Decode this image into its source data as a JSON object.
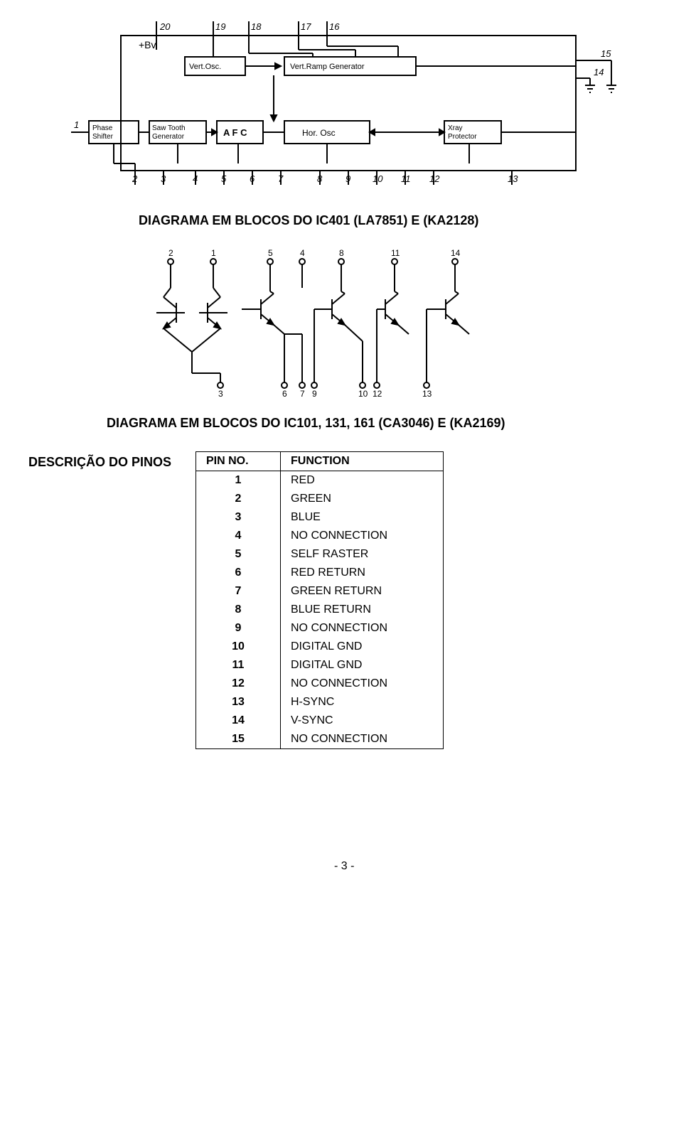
{
  "diagram1": {
    "caption": "DIAGRAMA EM BLOCOS DO IC401 (LA7851) E (KA2128)",
    "top_pins": [
      "20",
      "19",
      "18",
      "17",
      "16"
    ],
    "right_pins": [
      "15",
      "14"
    ],
    "plus_bv": "+Bv",
    "blocks_row1": [
      "Vert.Osc.",
      "Vert.Ramp Generator"
    ],
    "blocks_row2": [
      "Phase Shifter",
      "Saw Tooth Generator",
      "A F C",
      "Hor. Osc",
      "Xray Protector"
    ],
    "bottom_pins": [
      "2",
      "3",
      "4",
      "5",
      "6",
      "7",
      "8",
      "9",
      "10",
      "11",
      "12",
      "13"
    ],
    "left_pin": "1",
    "stroke": "#000000",
    "stroke_width": 2,
    "font_block": 12,
    "font_pin": 13
  },
  "diagram2": {
    "caption": "DIAGRAMA EM BLOCOS DO IC101, 131, 161 (CA3046) E (KA2169)",
    "top_terminals": [
      "2",
      "1",
      "5",
      "4",
      "8",
      "11",
      "14"
    ],
    "bottom_terminals": [
      "3",
      "6",
      "7",
      "9",
      "10",
      "12",
      "13"
    ],
    "stroke": "#000000",
    "stroke_width": 2,
    "font_pin": 12
  },
  "section_label": "DESCRIÇÃO DO PINOS",
  "pin_table": {
    "headers": [
      "PIN  NO.",
      "FUNCTION"
    ],
    "rows": [
      [
        "1",
        "RED"
      ],
      [
        "2",
        "GREEN"
      ],
      [
        "3",
        "BLUE"
      ],
      [
        "4",
        "NO CONNECTION"
      ],
      [
        "5",
        "SELF RASTER"
      ],
      [
        "6",
        "RED RETURN"
      ],
      [
        "7",
        "GREEN RETURN"
      ],
      [
        "8",
        "BLUE RETURN"
      ],
      [
        "9",
        "NO CONNECTION"
      ],
      [
        "10",
        "DIGITAL GND"
      ],
      [
        "11",
        "DIGITAL GND"
      ],
      [
        "12",
        "NO CONNECTION"
      ],
      [
        "13",
        "H-SYNC"
      ],
      [
        "14",
        "V-SYNC"
      ],
      [
        "15",
        "NO CONNECTION"
      ]
    ]
  },
  "page_number": "- 3 -"
}
